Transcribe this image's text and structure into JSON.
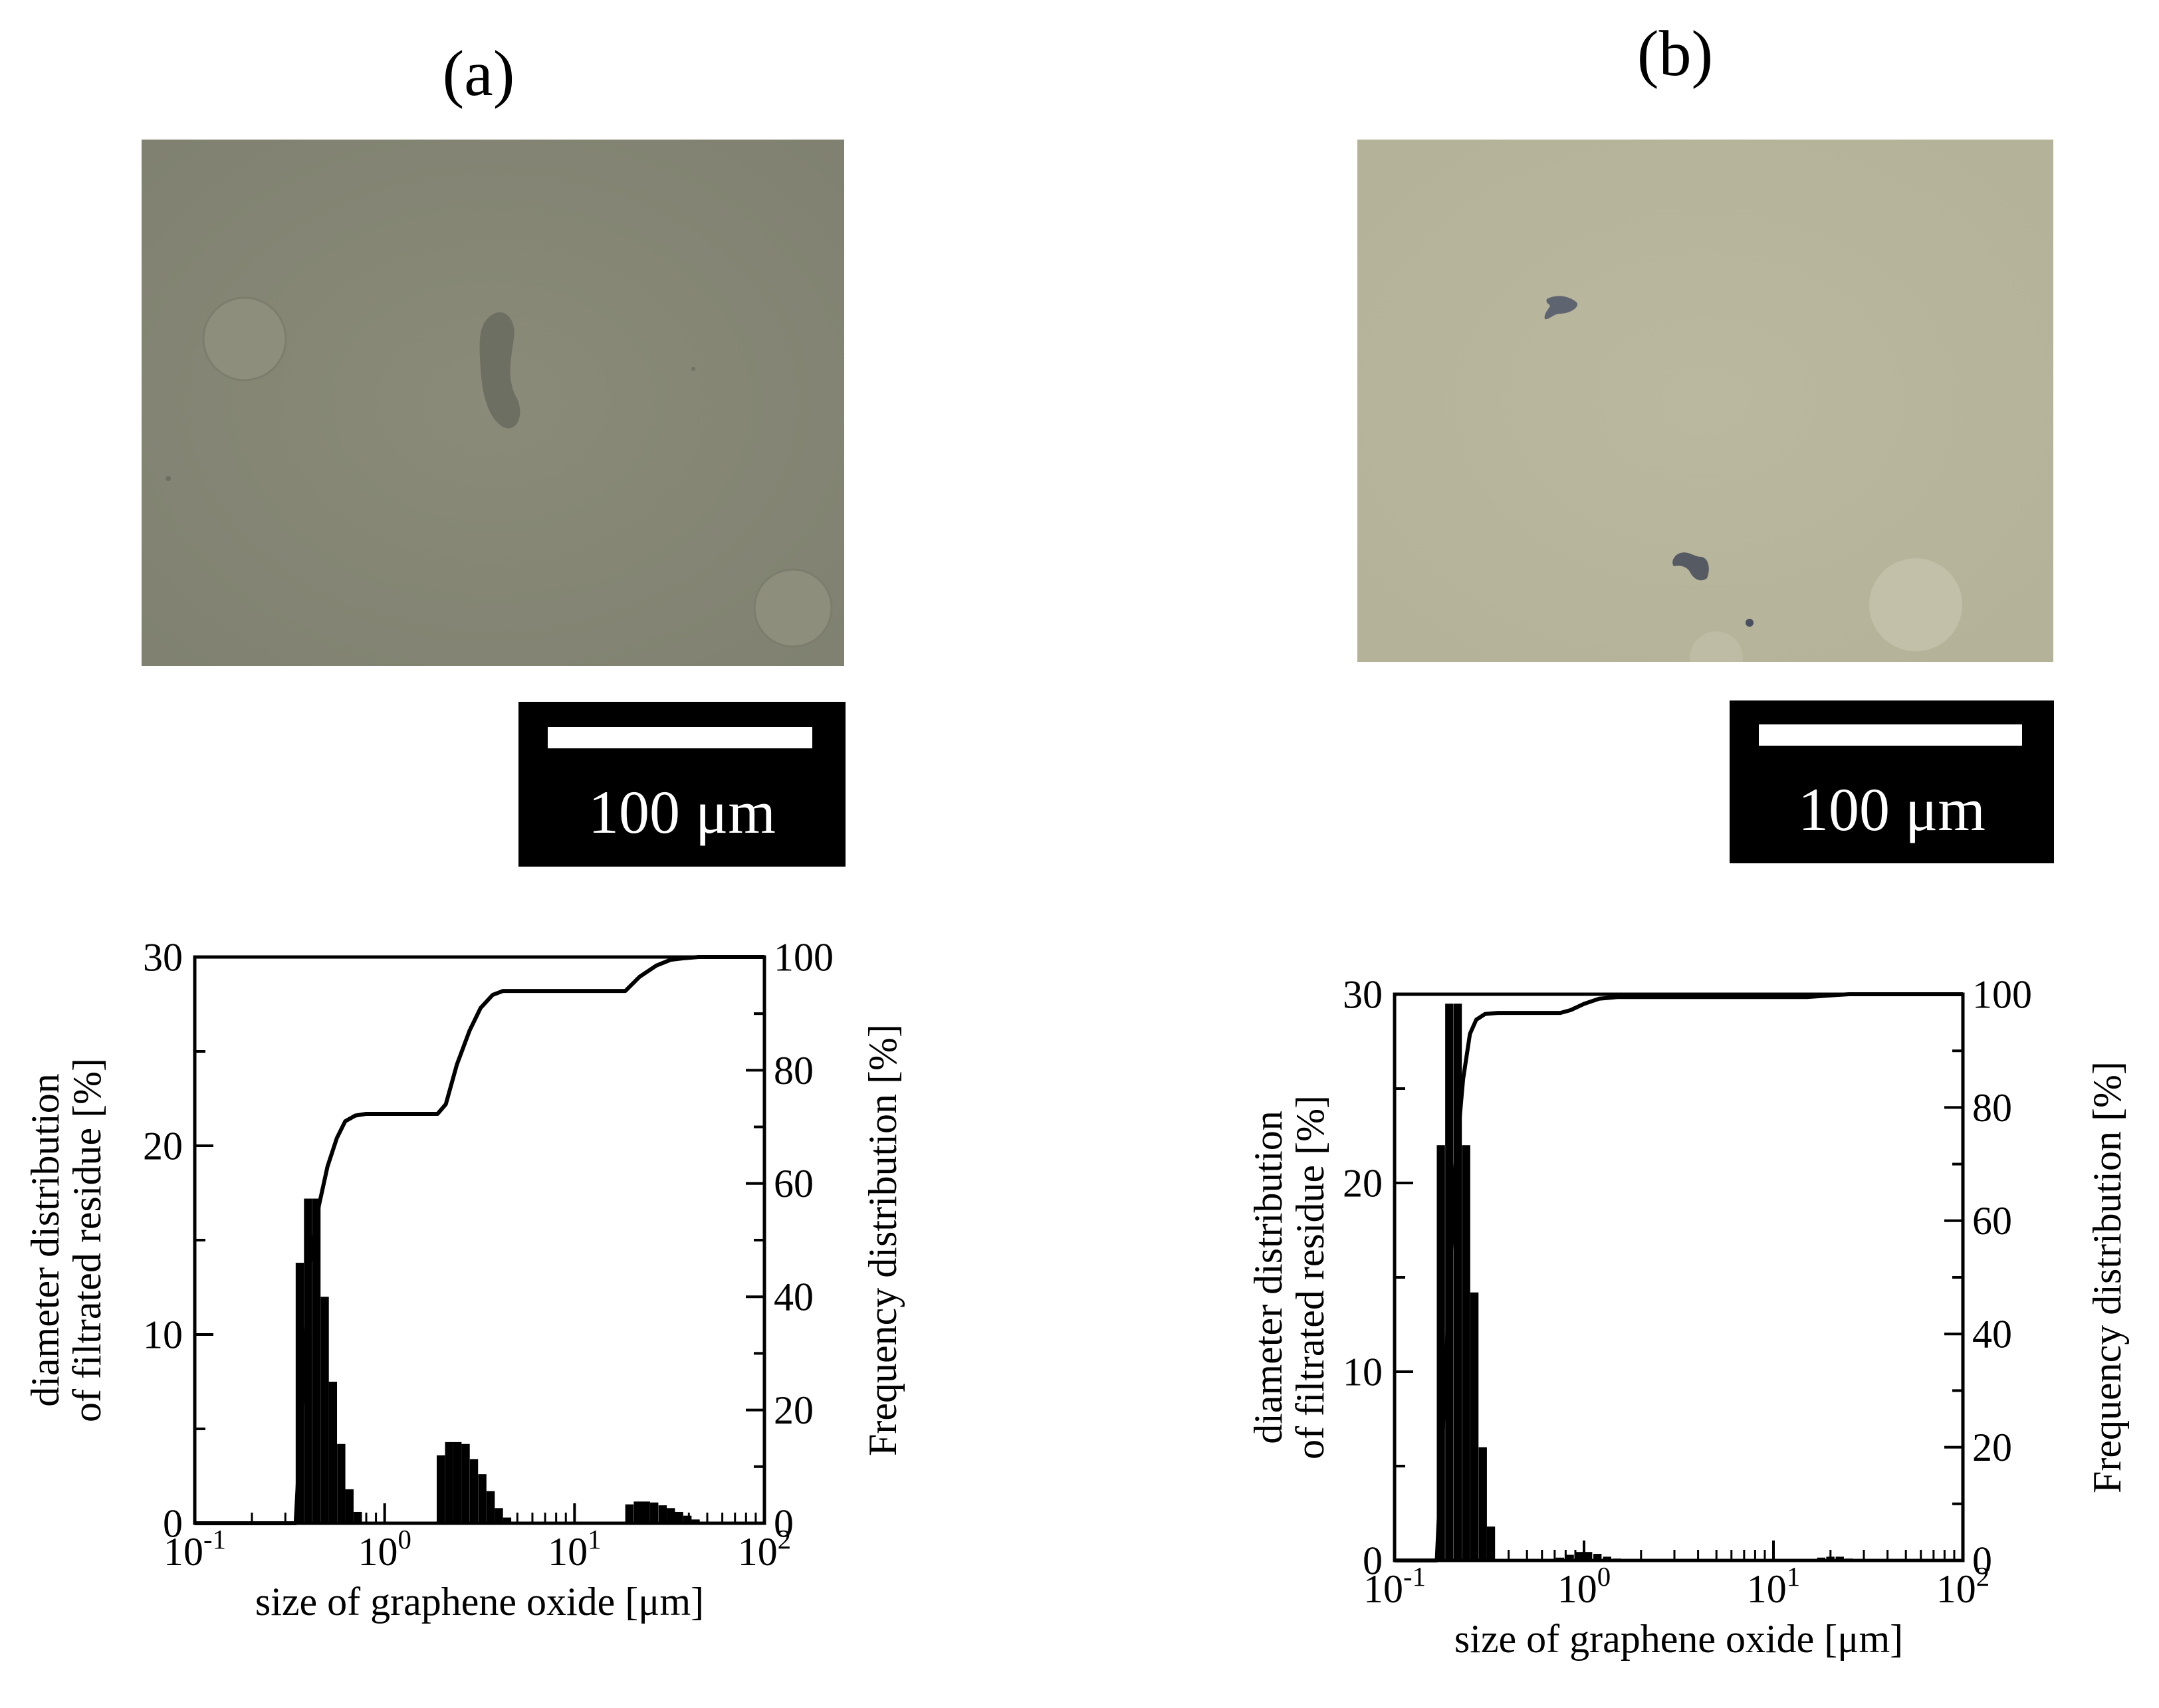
{
  "panels": [
    {
      "label": "(a)",
      "image_name": "optical-micrograph-a",
      "scalebar_label": "100 μm",
      "background_color": "#868672",
      "chart_data": {
        "type": "bar",
        "xscale": "log",
        "xlim": [
          0.1,
          100
        ],
        "xticks": [
          "10-1",
          "100",
          "101",
          "102"
        ],
        "xlabel": "size of graphene oxide [μm]",
        "ylabel_lines": [
          "diameter distribution",
          "of filtrated residue  [%]"
        ],
        "ylim": [
          0,
          30
        ],
        "yticks": [
          0,
          10,
          20,
          30
        ],
        "y2label": "Frequency distribution  [%]",
        "y2lim": [
          0,
          100
        ],
        "y2ticks": [
          0,
          20,
          40,
          60,
          80,
          100
        ],
        "series": [
          {
            "kind": "bar",
            "axis": "left",
            "x": [
              0.34,
              0.376,
              0.416,
              0.46,
              0.508,
              0.562,
              0.621,
              0.687,
              1.88,
              2.08,
              2.3,
              2.54,
              2.81,
              3.11,
              3.44,
              3.8,
              4.2,
              18.5,
              20.5,
              22.6,
              25.0,
              27.7,
              30.6,
              33.8,
              37.4,
              41.3
            ],
            "values": [
              13.8,
              17.2,
              17.2,
              12.0,
              7.5,
              4.2,
              1.8,
              0.6,
              3.6,
              4.3,
              4.3,
              4.2,
              3.4,
              2.6,
              1.7,
              0.8,
              0.3,
              1.0,
              1.15,
              1.15,
              1.1,
              0.95,
              0.8,
              0.6,
              0.4,
              0.2
            ]
          },
          {
            "kind": "line",
            "axis": "right",
            "x": [
              0.1,
              0.34,
              0.4,
              0.45,
              0.5,
              0.56,
              0.62,
              0.7,
              0.8,
              1.0,
              1.5,
              1.9,
              2.1,
              2.4,
              2.8,
              3.2,
              3.7,
              4.2,
              5.0,
              10,
              18.5,
              22,
              27,
              32,
              38,
              45,
              60,
              100
            ],
            "values": [
              0,
              0,
              45,
              56,
              63,
              68,
              71,
              72,
              72.3,
              72.3,
              72.3,
              72.3,
              74,
              81,
              87,
              91,
              93.3,
              94,
              94,
              94,
              94,
              96.5,
              98.5,
              99.5,
              99.8,
              100,
              100,
              100
            ]
          }
        ]
      }
    },
    {
      "label": "(b)",
      "image_name": "optical-micrograph-b",
      "scalebar_label": "100 μm",
      "background_color": "#b7b59a",
      "chart_data": {
        "type": "bar",
        "xscale": "log",
        "xlim": [
          0.1,
          100
        ],
        "xticks": [
          "10-1",
          "100",
          "101",
          "102"
        ],
        "xlabel": "size of graphene oxide [μm]",
        "ylabel_lines": [
          "diameter distribution",
          "of filtrated residue  [%]"
        ],
        "ylim": [
          0,
          30
        ],
        "yticks": [
          0,
          10,
          20,
          30
        ],
        "y2label": "Frequency distribution  [%]",
        "y2lim": [
          0,
          100
        ],
        "y2ticks": [
          0,
          20,
          40,
          60,
          80,
          100
        ],
        "series": [
          {
            "kind": "bar",
            "axis": "left",
            "x": [
              0.167,
              0.185,
              0.205,
              0.227,
              0.251,
              0.278,
              0.307,
              0.71,
              0.8,
              0.9,
              1.0,
              1.12,
              1.26,
              1.42,
              17,
              19,
              21.3,
              23.8
            ],
            "values": [
              22.0,
              29.5,
              29.5,
              22.0,
              14.2,
              6.0,
              1.8,
              0.15,
              0.3,
              0.45,
              0.45,
              0.35,
              0.2,
              0.1,
              0.15,
              0.2,
              0.2,
              0.1
            ]
          },
          {
            "kind": "line",
            "axis": "right",
            "x": [
              0.1,
              0.167,
              0.19,
              0.21,
              0.23,
              0.25,
              0.27,
              0.3,
              0.35,
              0.5,
              0.75,
              0.85,
              1.0,
              1.2,
              1.5,
              2.0,
              5,
              15,
              20,
              25,
              100
            ],
            "values": [
              0,
              0,
              40,
              70,
              85,
              93,
              95.5,
              96.5,
              96.7,
              96.7,
              96.7,
              97.2,
              98.3,
              99.2,
              99.5,
              99.5,
              99.5,
              99.5,
              99.8,
              100,
              100
            ]
          }
        ]
      }
    }
  ]
}
